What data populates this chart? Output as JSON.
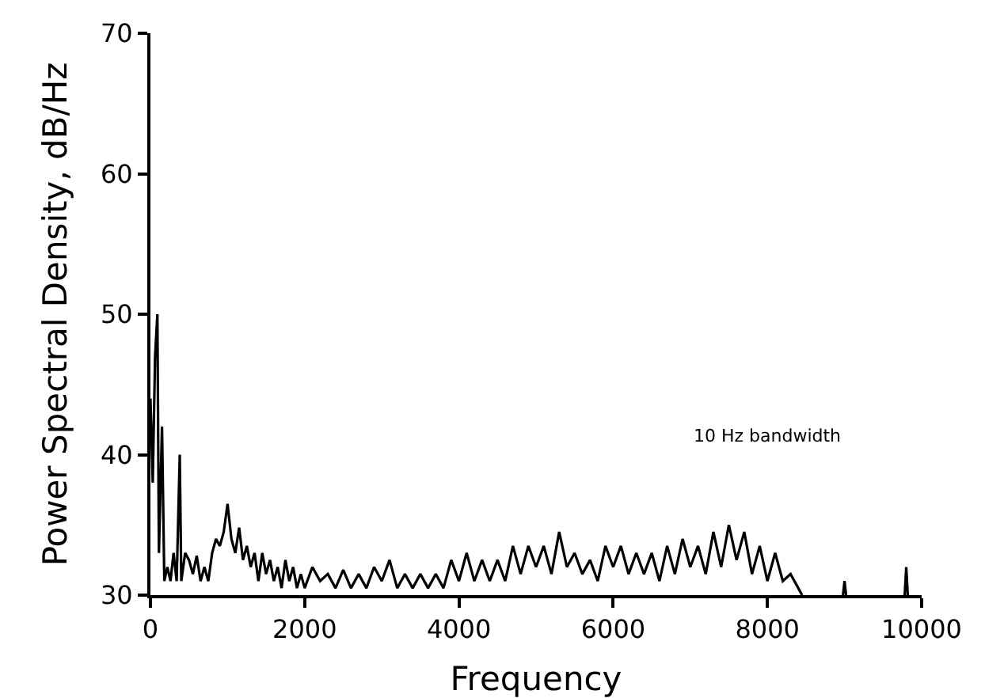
{
  "chart_data": {
    "type": "line",
    "xlabel": "Frequency",
    "ylabel": "Power Spectral Density, dB/Hz",
    "annotations": [
      "10 Hz bandwidth"
    ],
    "xlim": [
      0,
      10000
    ],
    "ylim": [
      30,
      70
    ],
    "xticks": [
      0,
      2000,
      4000,
      6000,
      8000,
      10000
    ],
    "yticks": [
      30,
      40,
      50,
      60,
      70
    ],
    "grid": false,
    "marker": "none",
    "line_style": "solid",
    "x": [
      0,
      30,
      60,
      90,
      110,
      150,
      180,
      220,
      260,
      300,
      340,
      380,
      400,
      450,
      500,
      550,
      600,
      650,
      700,
      750,
      800,
      850,
      900,
      950,
      1000,
      1050,
      1100,
      1150,
      1200,
      1250,
      1300,
      1350,
      1400,
      1450,
      1500,
      1550,
      1600,
      1650,
      1700,
      1750,
      1800,
      1850,
      1900,
      1950,
      2000,
      2100,
      2200,
      2300,
      2400,
      2500,
      2600,
      2700,
      2800,
      2900,
      3000,
      3100,
      3200,
      3300,
      3400,
      3500,
      3600,
      3700,
      3800,
      3900,
      4000,
      4100,
      4200,
      4300,
      4400,
      4500,
      4600,
      4700,
      4800,
      4900,
      5000,
      5100,
      5200,
      5300,
      5400,
      5500,
      5600,
      5700,
      5800,
      5900,
      6000,
      6100,
      6200,
      6300,
      6400,
      6500,
      6600,
      6700,
      6800,
      6900,
      7000,
      7100,
      7200,
      7300,
      7400,
      7500,
      7600,
      7700,
      7800,
      7900,
      8000,
      8100,
      8200,
      8300,
      8400,
      8450,
      8700,
      8980,
      9000,
      9020,
      9400,
      9780,
      9800,
      9820
    ],
    "series": [
      {
        "color": "#000000",
        "values": [
          44,
          38,
          47,
          50,
          33,
          42,
          31,
          32,
          31,
          33,
          31,
          40,
          31,
          33,
          32.5,
          31.5,
          32.8,
          31,
          32,
          31,
          33,
          34,
          33.5,
          34.5,
          36.5,
          34,
          33,
          34.8,
          32.5,
          33.5,
          32,
          33,
          31,
          33,
          31.5,
          32.5,
          31,
          32,
          30.5,
          32.5,
          31,
          32,
          30.5,
          31.5,
          30.5,
          32,
          31,
          31.5,
          30.5,
          31.8,
          30.5,
          31.5,
          30.5,
          32,
          31,
          32.5,
          30.5,
          31.5,
          30.5,
          31.5,
          30.5,
          31.5,
          30.5,
          32.5,
          31,
          33,
          31,
          32.5,
          31,
          32.5,
          31,
          33.5,
          31.5,
          33.5,
          32,
          33.5,
          31.5,
          34.5,
          32,
          33,
          31.5,
          32.5,
          31,
          33.5,
          32,
          33.5,
          31.5,
          33,
          31.5,
          33,
          31,
          33.5,
          31.5,
          34,
          32,
          33.5,
          31.5,
          34.5,
          32,
          35,
          32.5,
          34.5,
          31.5,
          33.5,
          31,
          33,
          31,
          31.5,
          30.5,
          30,
          null,
          30,
          31,
          30,
          null,
          30,
          32,
          30
        ]
      }
    ]
  }
}
